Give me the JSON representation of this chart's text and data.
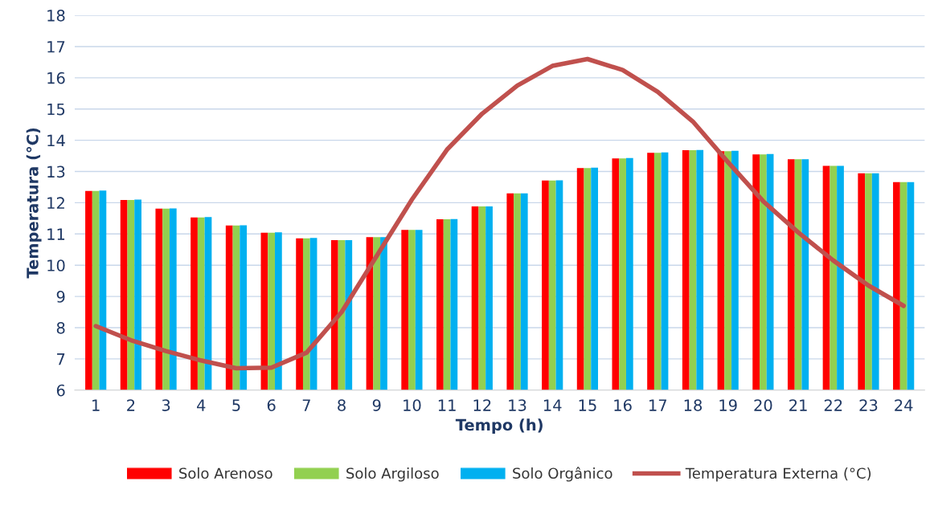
{
  "chart_data": {
    "type": "bar",
    "xlabel": "Tempo (h)",
    "ylabel": "Temperatura (°C)",
    "categories": [
      "1",
      "2",
      "3",
      "4",
      "5",
      "6",
      "7",
      "8",
      "9",
      "10",
      "11",
      "12",
      "13",
      "14",
      "15",
      "16",
      "17",
      "18",
      "19",
      "20",
      "21",
      "22",
      "23",
      "24"
    ],
    "series": [
      {
        "name": "Solo Arenoso",
        "color": "#ff0000",
        "values": [
          12.38,
          12.09,
          11.81,
          11.53,
          11.27,
          11.04,
          10.86,
          10.8,
          10.9,
          11.13,
          11.47,
          11.88,
          12.3,
          12.71,
          13.11,
          13.42,
          13.6,
          13.68,
          13.65,
          13.55,
          13.39,
          13.18,
          12.94,
          12.66
        ]
      },
      {
        "name": "Solo Argiloso",
        "color": "#92d050",
        "values": [
          12.38,
          12.09,
          11.81,
          11.53,
          11.27,
          11.04,
          10.86,
          10.8,
          10.9,
          11.13,
          11.47,
          11.88,
          12.3,
          12.71,
          13.11,
          13.42,
          13.6,
          13.68,
          13.65,
          13.55,
          13.39,
          13.18,
          12.94,
          12.66
        ]
      },
      {
        "name": "Solo Orgânico",
        "color": "#00b0f0",
        "values": [
          12.39,
          12.1,
          11.82,
          11.54,
          11.28,
          11.05,
          10.87,
          10.8,
          10.9,
          11.13,
          11.48,
          11.88,
          12.3,
          12.72,
          13.12,
          13.43,
          13.61,
          13.69,
          13.66,
          13.56,
          13.39,
          13.18,
          12.94,
          12.66
        ]
      },
      {
        "name": "Temperatura Externa (°C)",
        "type": "line",
        "color": "#c0504d",
        "values": [
          8.05,
          7.6,
          7.25,
          6.95,
          6.7,
          6.72,
          7.2,
          8.5,
          10.3,
          12.1,
          13.7,
          14.85,
          15.75,
          16.38,
          16.6,
          16.25,
          15.55,
          14.6,
          13.3,
          12.05,
          11.05,
          10.15,
          9.35,
          8.7
        ]
      }
    ],
    "ylim": [
      6,
      18
    ],
    "yticks": [
      6,
      7,
      8,
      9,
      10,
      11,
      12,
      13,
      14,
      15,
      16,
      17,
      18
    ],
    "grid": "y",
    "legend": "bottom",
    "line_style": "solid",
    "marker": "none"
  }
}
